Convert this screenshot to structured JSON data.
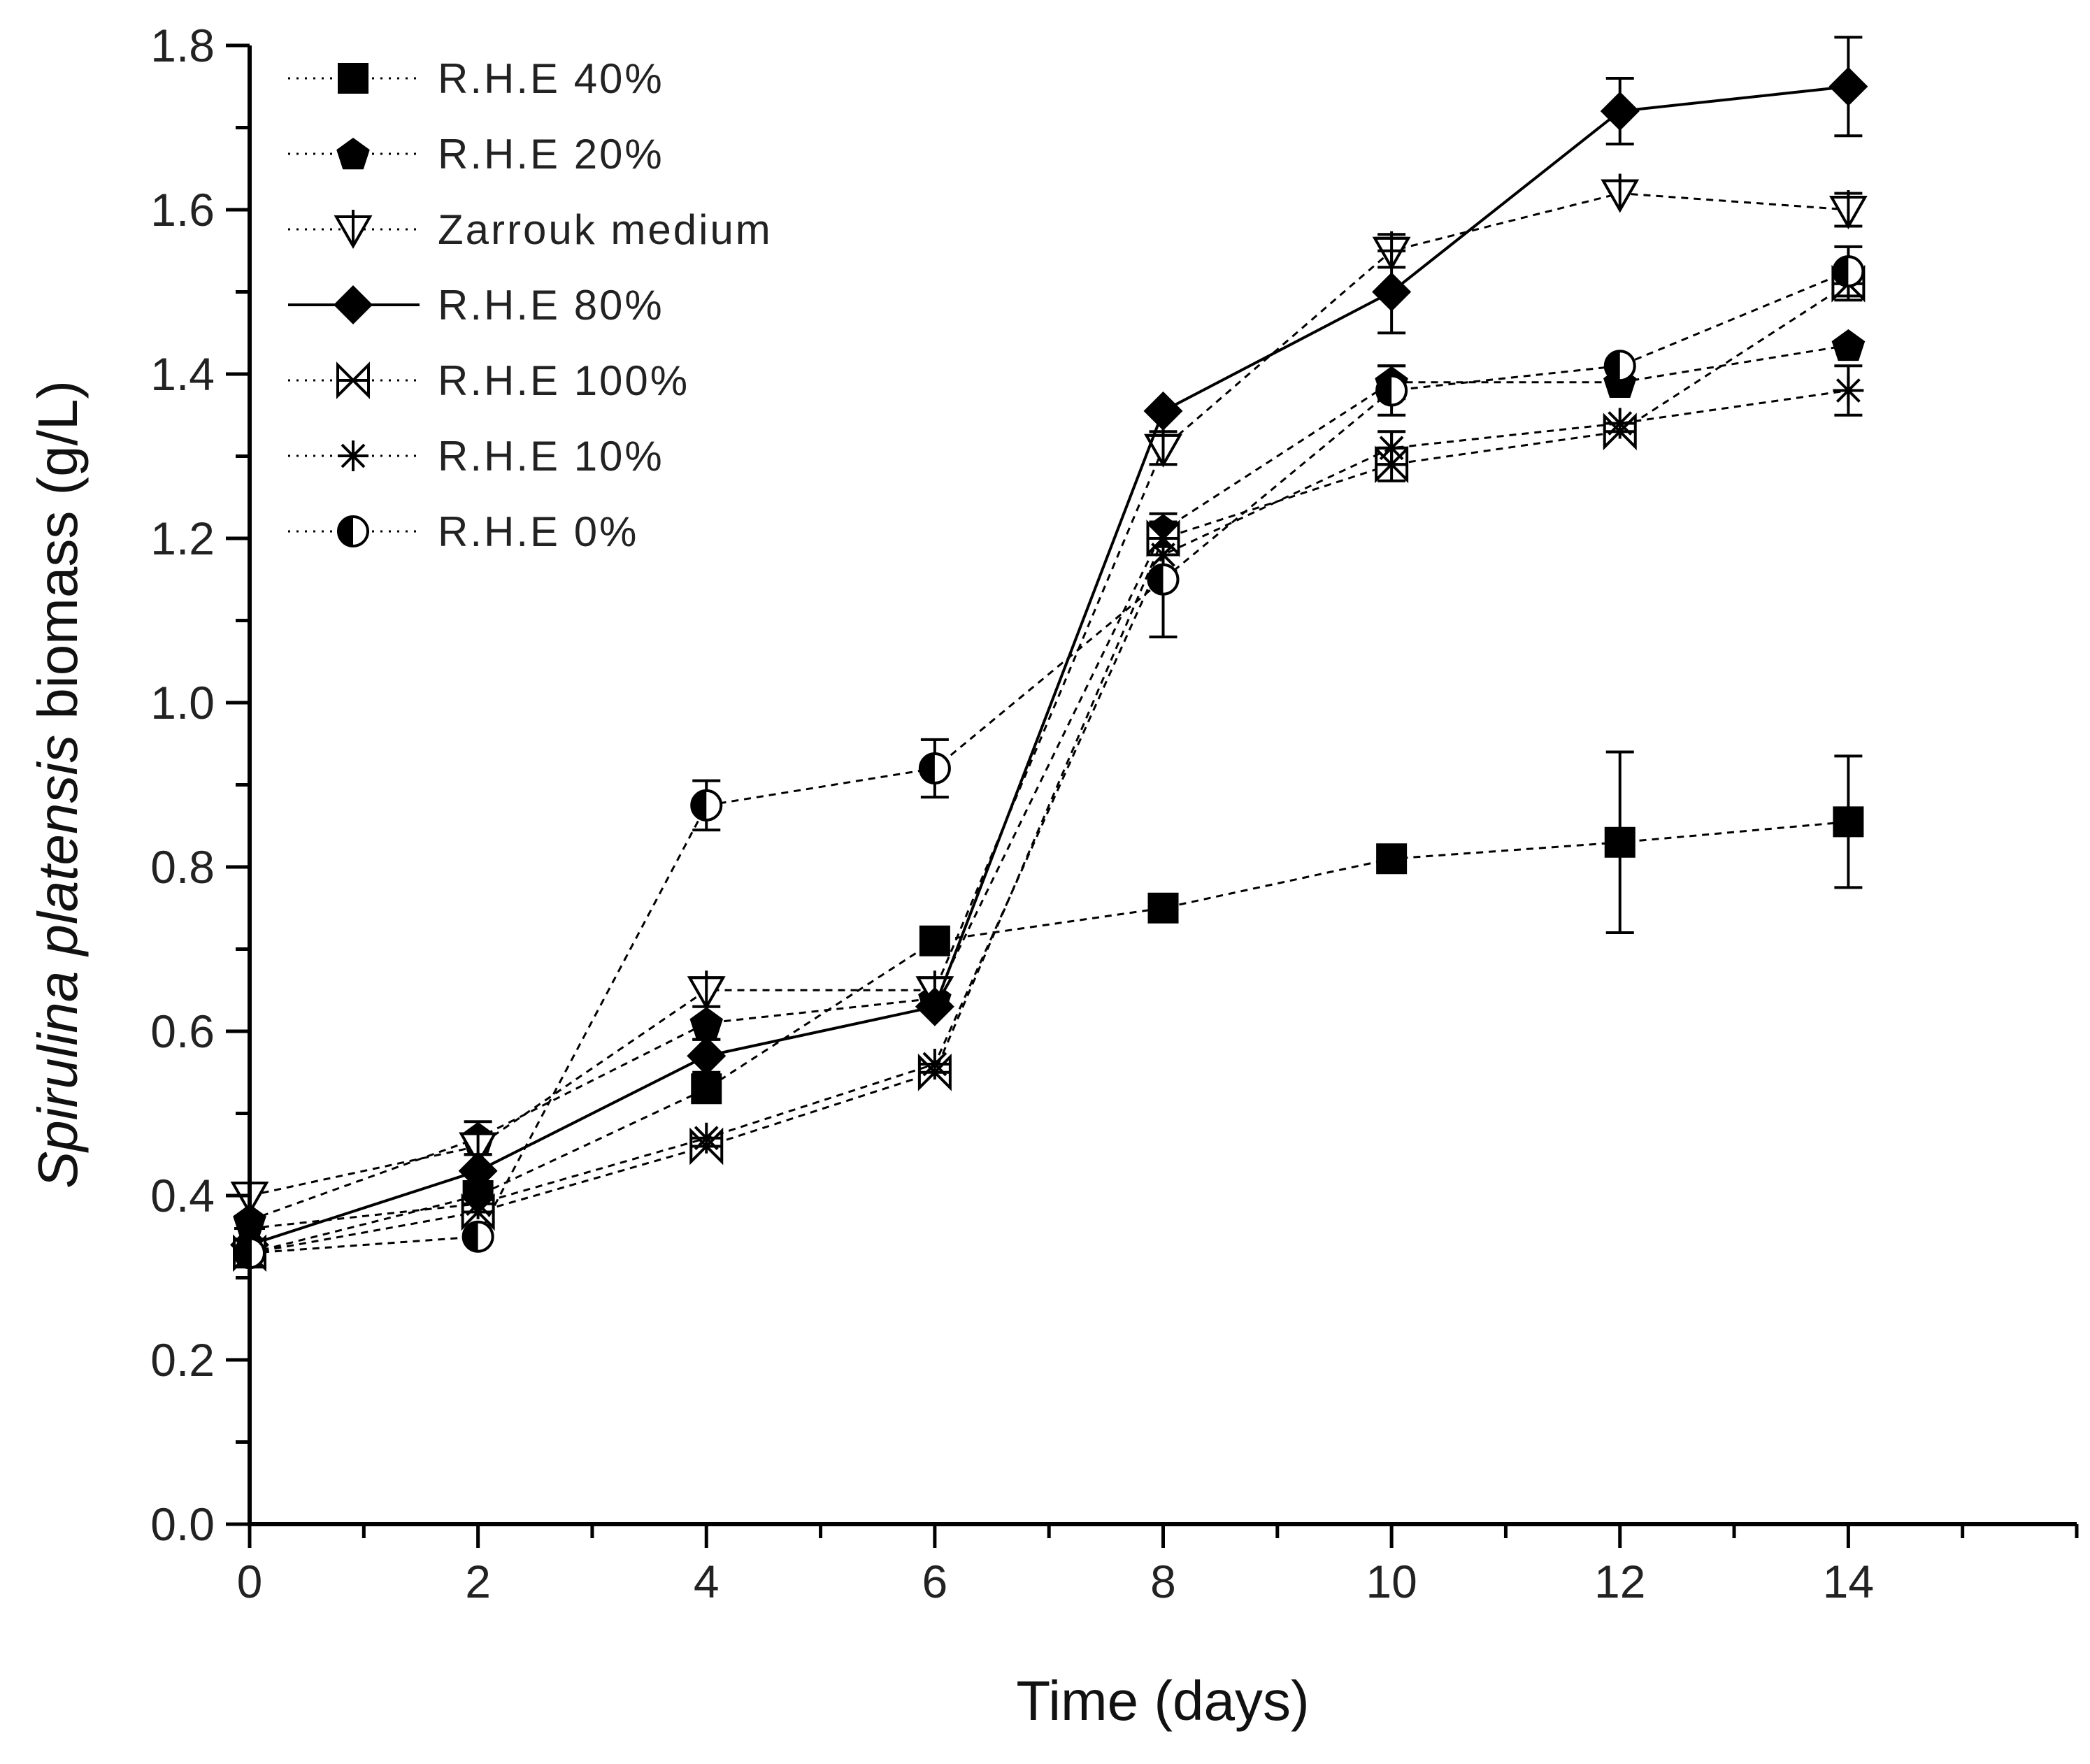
{
  "chart_data": {
    "type": "line",
    "title": "",
    "xlabel": "Time (days)",
    "ylabel_italic": "Spirulina platensis",
    "ylabel_rest": " biomass (g/L)",
    "xlim": [
      0,
      16
    ],
    "ylim": [
      0,
      1.8
    ],
    "xticks": [
      0,
      2,
      4,
      6,
      8,
      10,
      12,
      14
    ],
    "xtick_labels": [
      "0",
      "2",
      "4",
      "6",
      "8",
      "10",
      "12",
      "14"
    ],
    "yticks": [
      0,
      0.2,
      0.4,
      0.6,
      0.8,
      1.0,
      1.2,
      1.4,
      1.6,
      1.8
    ],
    "ytick_labels": [
      "0.0",
      "0.2",
      "0.4",
      "0.6",
      "0.8",
      "1.0",
      "1.2",
      "1.4",
      "1.6",
      "1.8"
    ],
    "grid": false,
    "legend_position": "top-left",
    "x": [
      0,
      2,
      4,
      6,
      8,
      10,
      12,
      14
    ],
    "series": [
      {
        "name": "R.H.E 40%",
        "key": "rhe40",
        "marker": "square",
        "line": "dashed",
        "values": [
          0.33,
          0.4,
          0.53,
          0.71,
          0.75,
          0.81,
          0.83,
          0.855
        ],
        "errors": [
          0.01,
          0.01,
          0.01,
          0.01,
          0.01,
          0.01,
          0.11,
          0.08
        ]
      },
      {
        "name": "R.H.E 20%",
        "key": "rhe20",
        "marker": "pentagon",
        "line": "dashed",
        "values": [
          0.37,
          0.47,
          0.61,
          0.64,
          1.21,
          1.39,
          1.39,
          1.435
        ],
        "errors": [
          0.01,
          0.02,
          0.02,
          0.01,
          0.02,
          0.02,
          0.01,
          0.01
        ]
      },
      {
        "name": "Zarrouk medium",
        "key": "zarrouk",
        "marker": "triangle-cross",
        "line": "dashed",
        "values": [
          0.4,
          0.46,
          0.65,
          0.65,
          1.31,
          1.55,
          1.62,
          1.6
        ],
        "errors": [
          0.01,
          0.01,
          0.01,
          0.01,
          0.02,
          0.02,
          0.01,
          0.02
        ]
      },
      {
        "name": "R.H.E 80%",
        "key": "rhe80",
        "marker": "diamond",
        "line": "solid",
        "values": [
          0.34,
          0.43,
          0.57,
          0.63,
          1.355,
          1.5,
          1.72,
          1.75
        ],
        "errors": [
          0.01,
          0.02,
          0.02,
          0.01,
          0.01,
          0.05,
          0.04,
          0.06
        ]
      },
      {
        "name": "R.H.E 100%",
        "key": "rhe100",
        "marker": "bowtie",
        "line": "dashed",
        "values": [
          0.33,
          0.38,
          0.46,
          0.55,
          1.2,
          1.29,
          1.33,
          1.51
        ],
        "errors": [
          0.01,
          0.01,
          0.01,
          0.01,
          0.02,
          0.02,
          0.01,
          0.02
        ]
      },
      {
        "name": "R.H.E 10%",
        "key": "rhe10",
        "marker": "asterisk",
        "line": "dashed",
        "values": [
          0.36,
          0.39,
          0.47,
          0.56,
          1.18,
          1.31,
          1.34,
          1.38
        ],
        "errors": [
          0.01,
          0.01,
          0.01,
          0.01,
          0.02,
          0.02,
          0.01,
          0.03
        ]
      },
      {
        "name": "R.H.E 0%",
        "key": "rhe0",
        "marker": "half-circle",
        "line": "dashed",
        "values": [
          0.33,
          0.35,
          0.875,
          0.92,
          1.15,
          1.38,
          1.41,
          1.525
        ],
        "errors": [
          0.01,
          0.01,
          0.03,
          0.035,
          0.07,
          0.03,
          0.01,
          0.03
        ]
      }
    ]
  }
}
